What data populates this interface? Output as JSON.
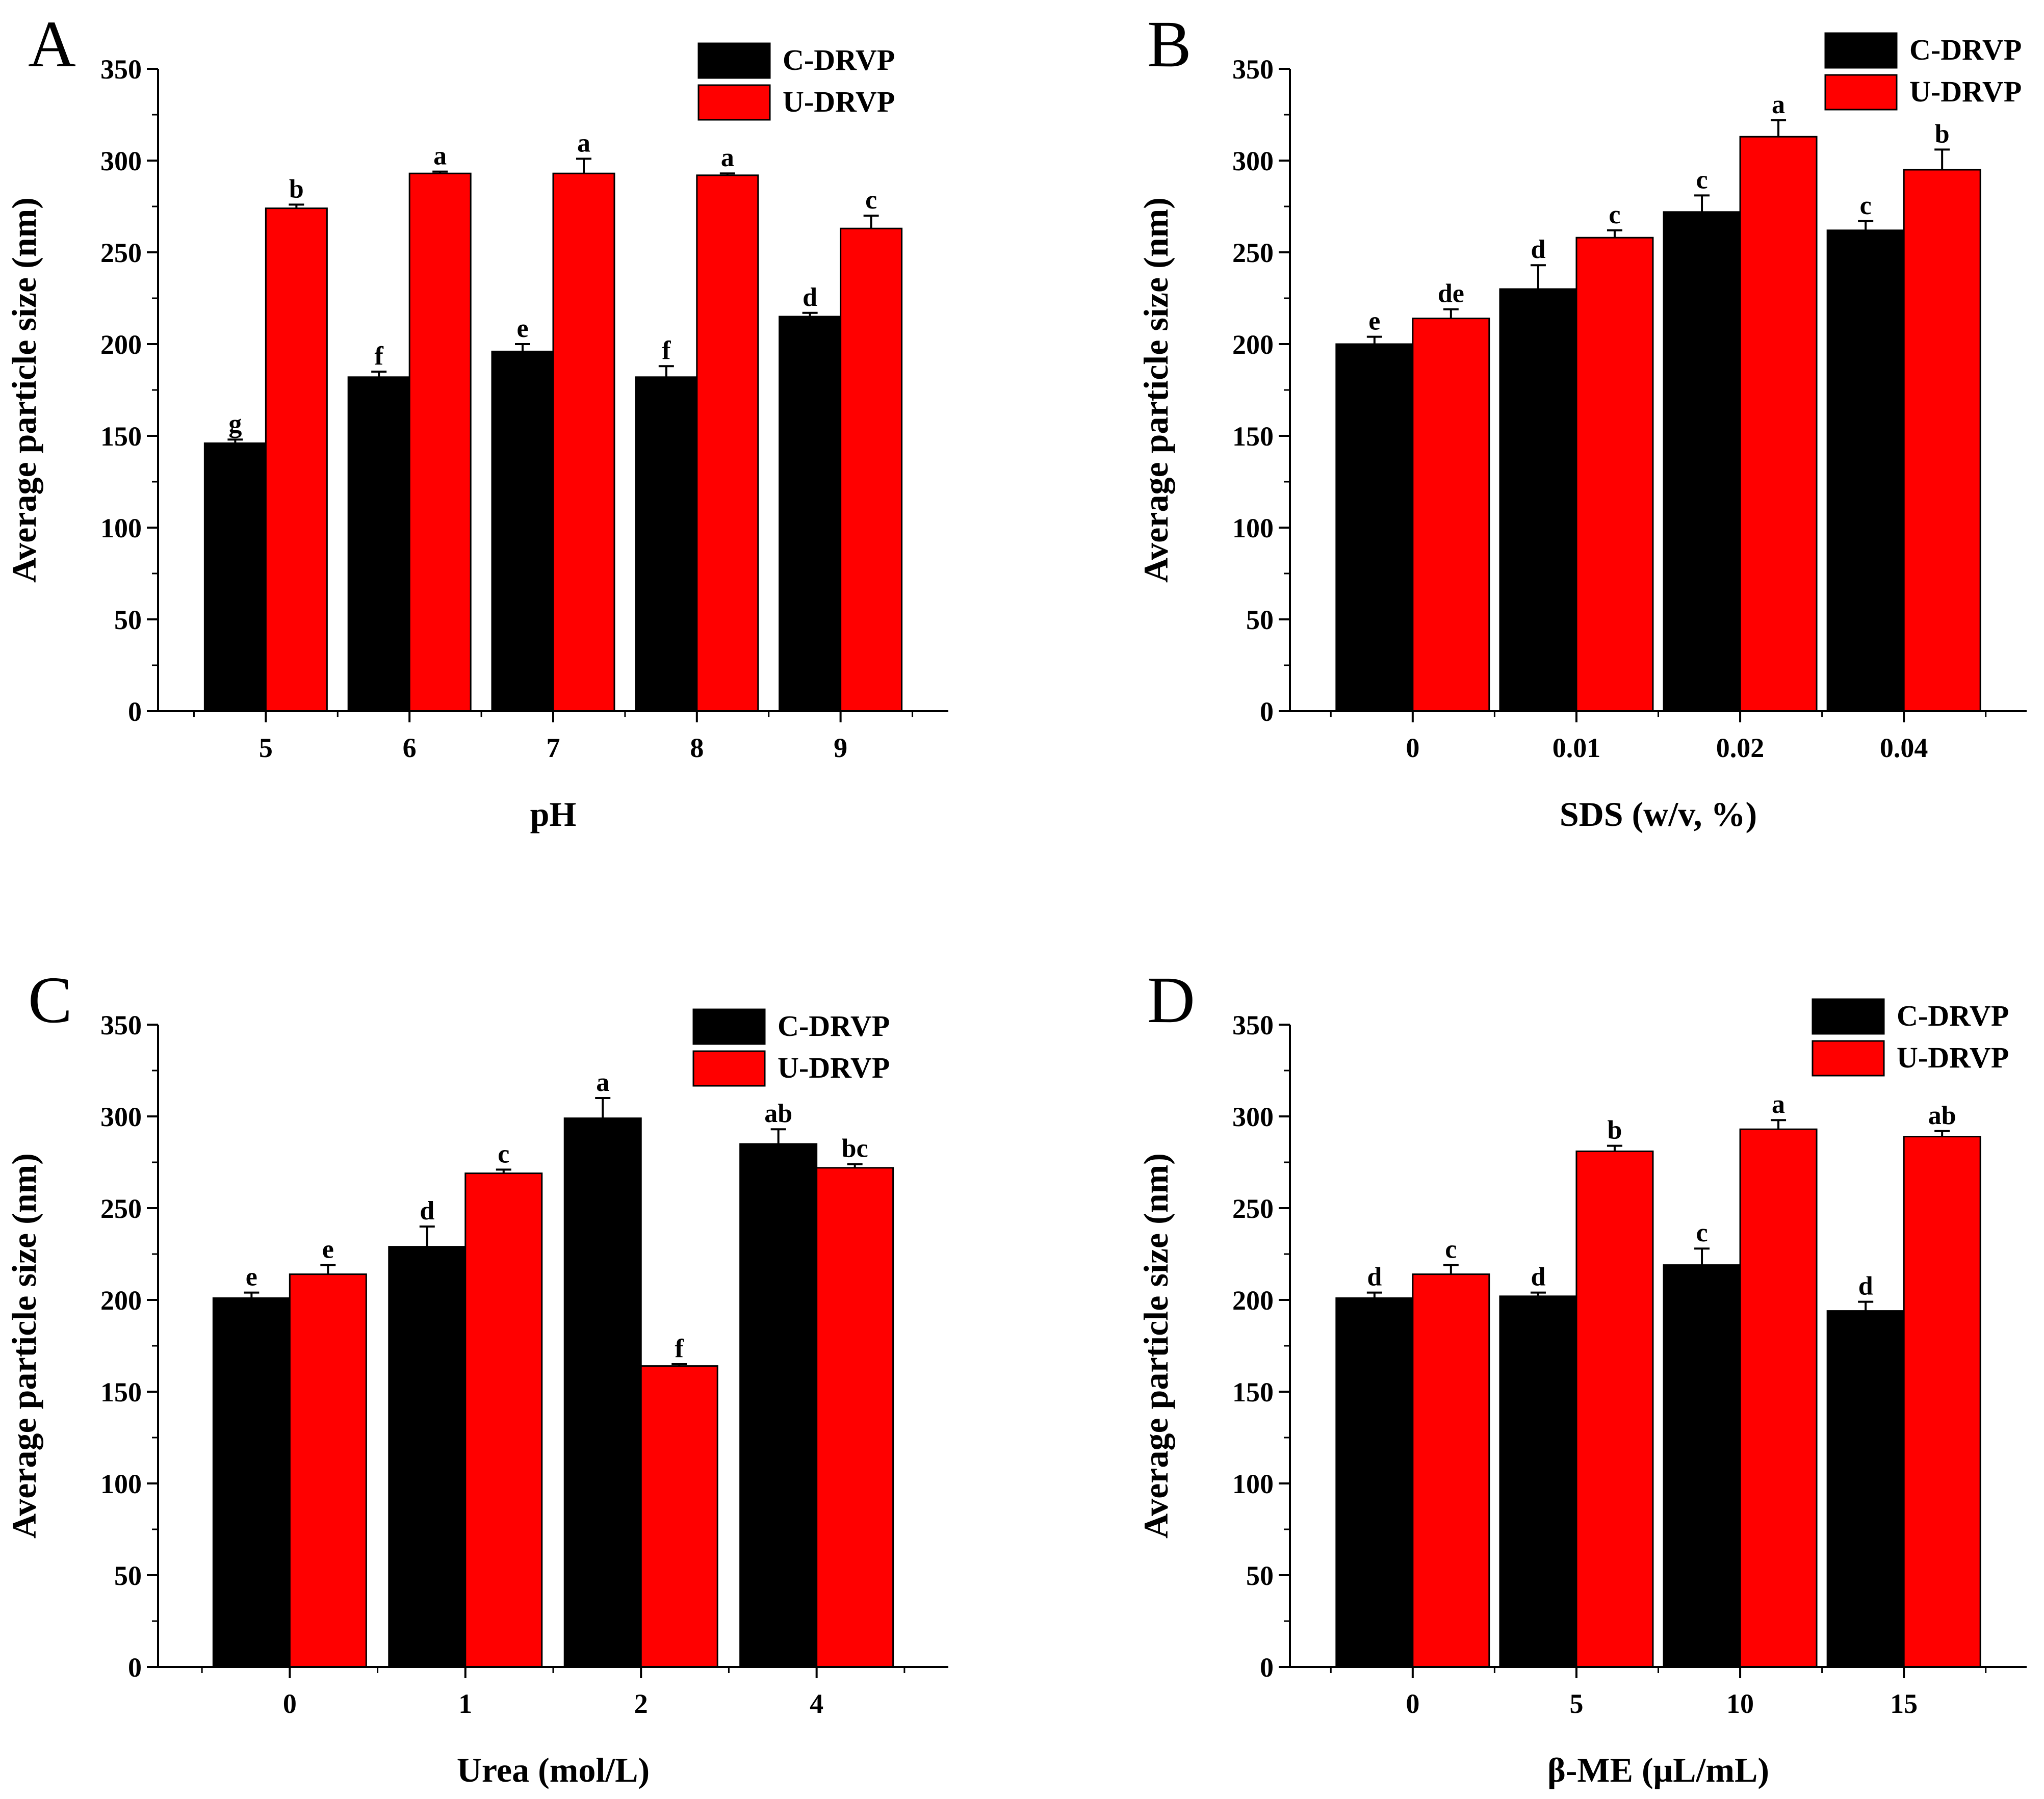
{
  "colors": {
    "c_drvp": "#000000",
    "u_drvp": "#ff0000",
    "axis": "#000000"
  },
  "chart_data": [
    {
      "type": "bar",
      "panel_label": "A",
      "xlabel": "pH",
      "ylabel": "Average particle size (nm)",
      "ylim": [
        0,
        350
      ],
      "yticks": [
        "0",
        "50",
        "100",
        "150",
        "200",
        "250",
        "300",
        "350"
      ],
      "categories": [
        "5",
        "6",
        "7",
        "8",
        "9"
      ],
      "legend_position": "top-right",
      "series": [
        {
          "name": "C-DRVP",
          "values": [
            146,
            182,
            196,
            182,
            215
          ],
          "errors": [
            2,
            3,
            4,
            6,
            2
          ],
          "labels": [
            "g",
            "f",
            "e",
            "f",
            "d"
          ]
        },
        {
          "name": "U-DRVP",
          "values": [
            274,
            293,
            293,
            292,
            263
          ],
          "errors": [
            2,
            1,
            8,
            1,
            7
          ],
          "labels": [
            "b",
            "a",
            "a",
            "a",
            "c"
          ]
        }
      ]
    },
    {
      "type": "bar",
      "panel_label": "B",
      "xlabel": "SDS (w/v, %)",
      "ylabel": "Average particle size (nm)",
      "ylim": [
        0,
        350
      ],
      "yticks": [
        "0",
        "50",
        "100",
        "150",
        "200",
        "250",
        "300",
        "350"
      ],
      "categories": [
        "0",
        "0.01",
        "0.02",
        "0.04"
      ],
      "legend_position": "top-right",
      "series": [
        {
          "name": "C-DRVP",
          "values": [
            200,
            230,
            272,
            262
          ],
          "errors": [
            4,
            13,
            9,
            5
          ],
          "labels": [
            "e",
            "d",
            "c",
            "c"
          ]
        },
        {
          "name": "U-DRVP",
          "values": [
            214,
            258,
            313,
            295
          ],
          "errors": [
            5,
            4,
            9,
            11
          ],
          "labels": [
            "de",
            "c",
            "a",
            "b"
          ]
        }
      ]
    },
    {
      "type": "bar",
      "panel_label": "C",
      "xlabel": "Urea (mol/L)",
      "ylabel": "Average particle size (nm)",
      "ylim": [
        0,
        350
      ],
      "yticks": [
        "0",
        "50",
        "100",
        "150",
        "200",
        "250",
        "300",
        "350"
      ],
      "categories": [
        "0",
        "1",
        "2",
        "4"
      ],
      "legend_position": "top-right",
      "series": [
        {
          "name": "C-DRVP",
          "values": [
            201,
            229,
            299,
            285
          ],
          "errors": [
            3,
            11,
            11,
            8
          ],
          "labels": [
            "e",
            "d",
            "a",
            "ab"
          ]
        },
        {
          "name": "U-DRVP",
          "values": [
            214,
            269,
            164,
            272
          ],
          "errors": [
            5,
            2,
            1,
            2
          ],
          "labels": [
            "e",
            "c",
            "f",
            "bc"
          ]
        }
      ]
    },
    {
      "type": "bar",
      "panel_label": "D",
      "xlabel": "β-ME (μL/mL)",
      "ylabel": "Average particle size (nm)",
      "ylim": [
        0,
        350
      ],
      "yticks": [
        "0",
        "50",
        "100",
        "150",
        "200",
        "250",
        "300",
        "350"
      ],
      "categories": [
        "0",
        "5",
        "10",
        "15"
      ],
      "legend_position": "top-right",
      "series": [
        {
          "name": "C-DRVP",
          "values": [
            201,
            202,
            219,
            194
          ],
          "errors": [
            3,
            2,
            9,
            5
          ],
          "labels": [
            "d",
            "d",
            "c",
            "d"
          ]
        },
        {
          "name": "U-DRVP",
          "values": [
            214,
            281,
            293,
            289
          ],
          "errors": [
            5,
            3,
            5,
            3
          ],
          "labels": [
            "c",
            "b",
            "a",
            "ab"
          ]
        }
      ]
    }
  ]
}
